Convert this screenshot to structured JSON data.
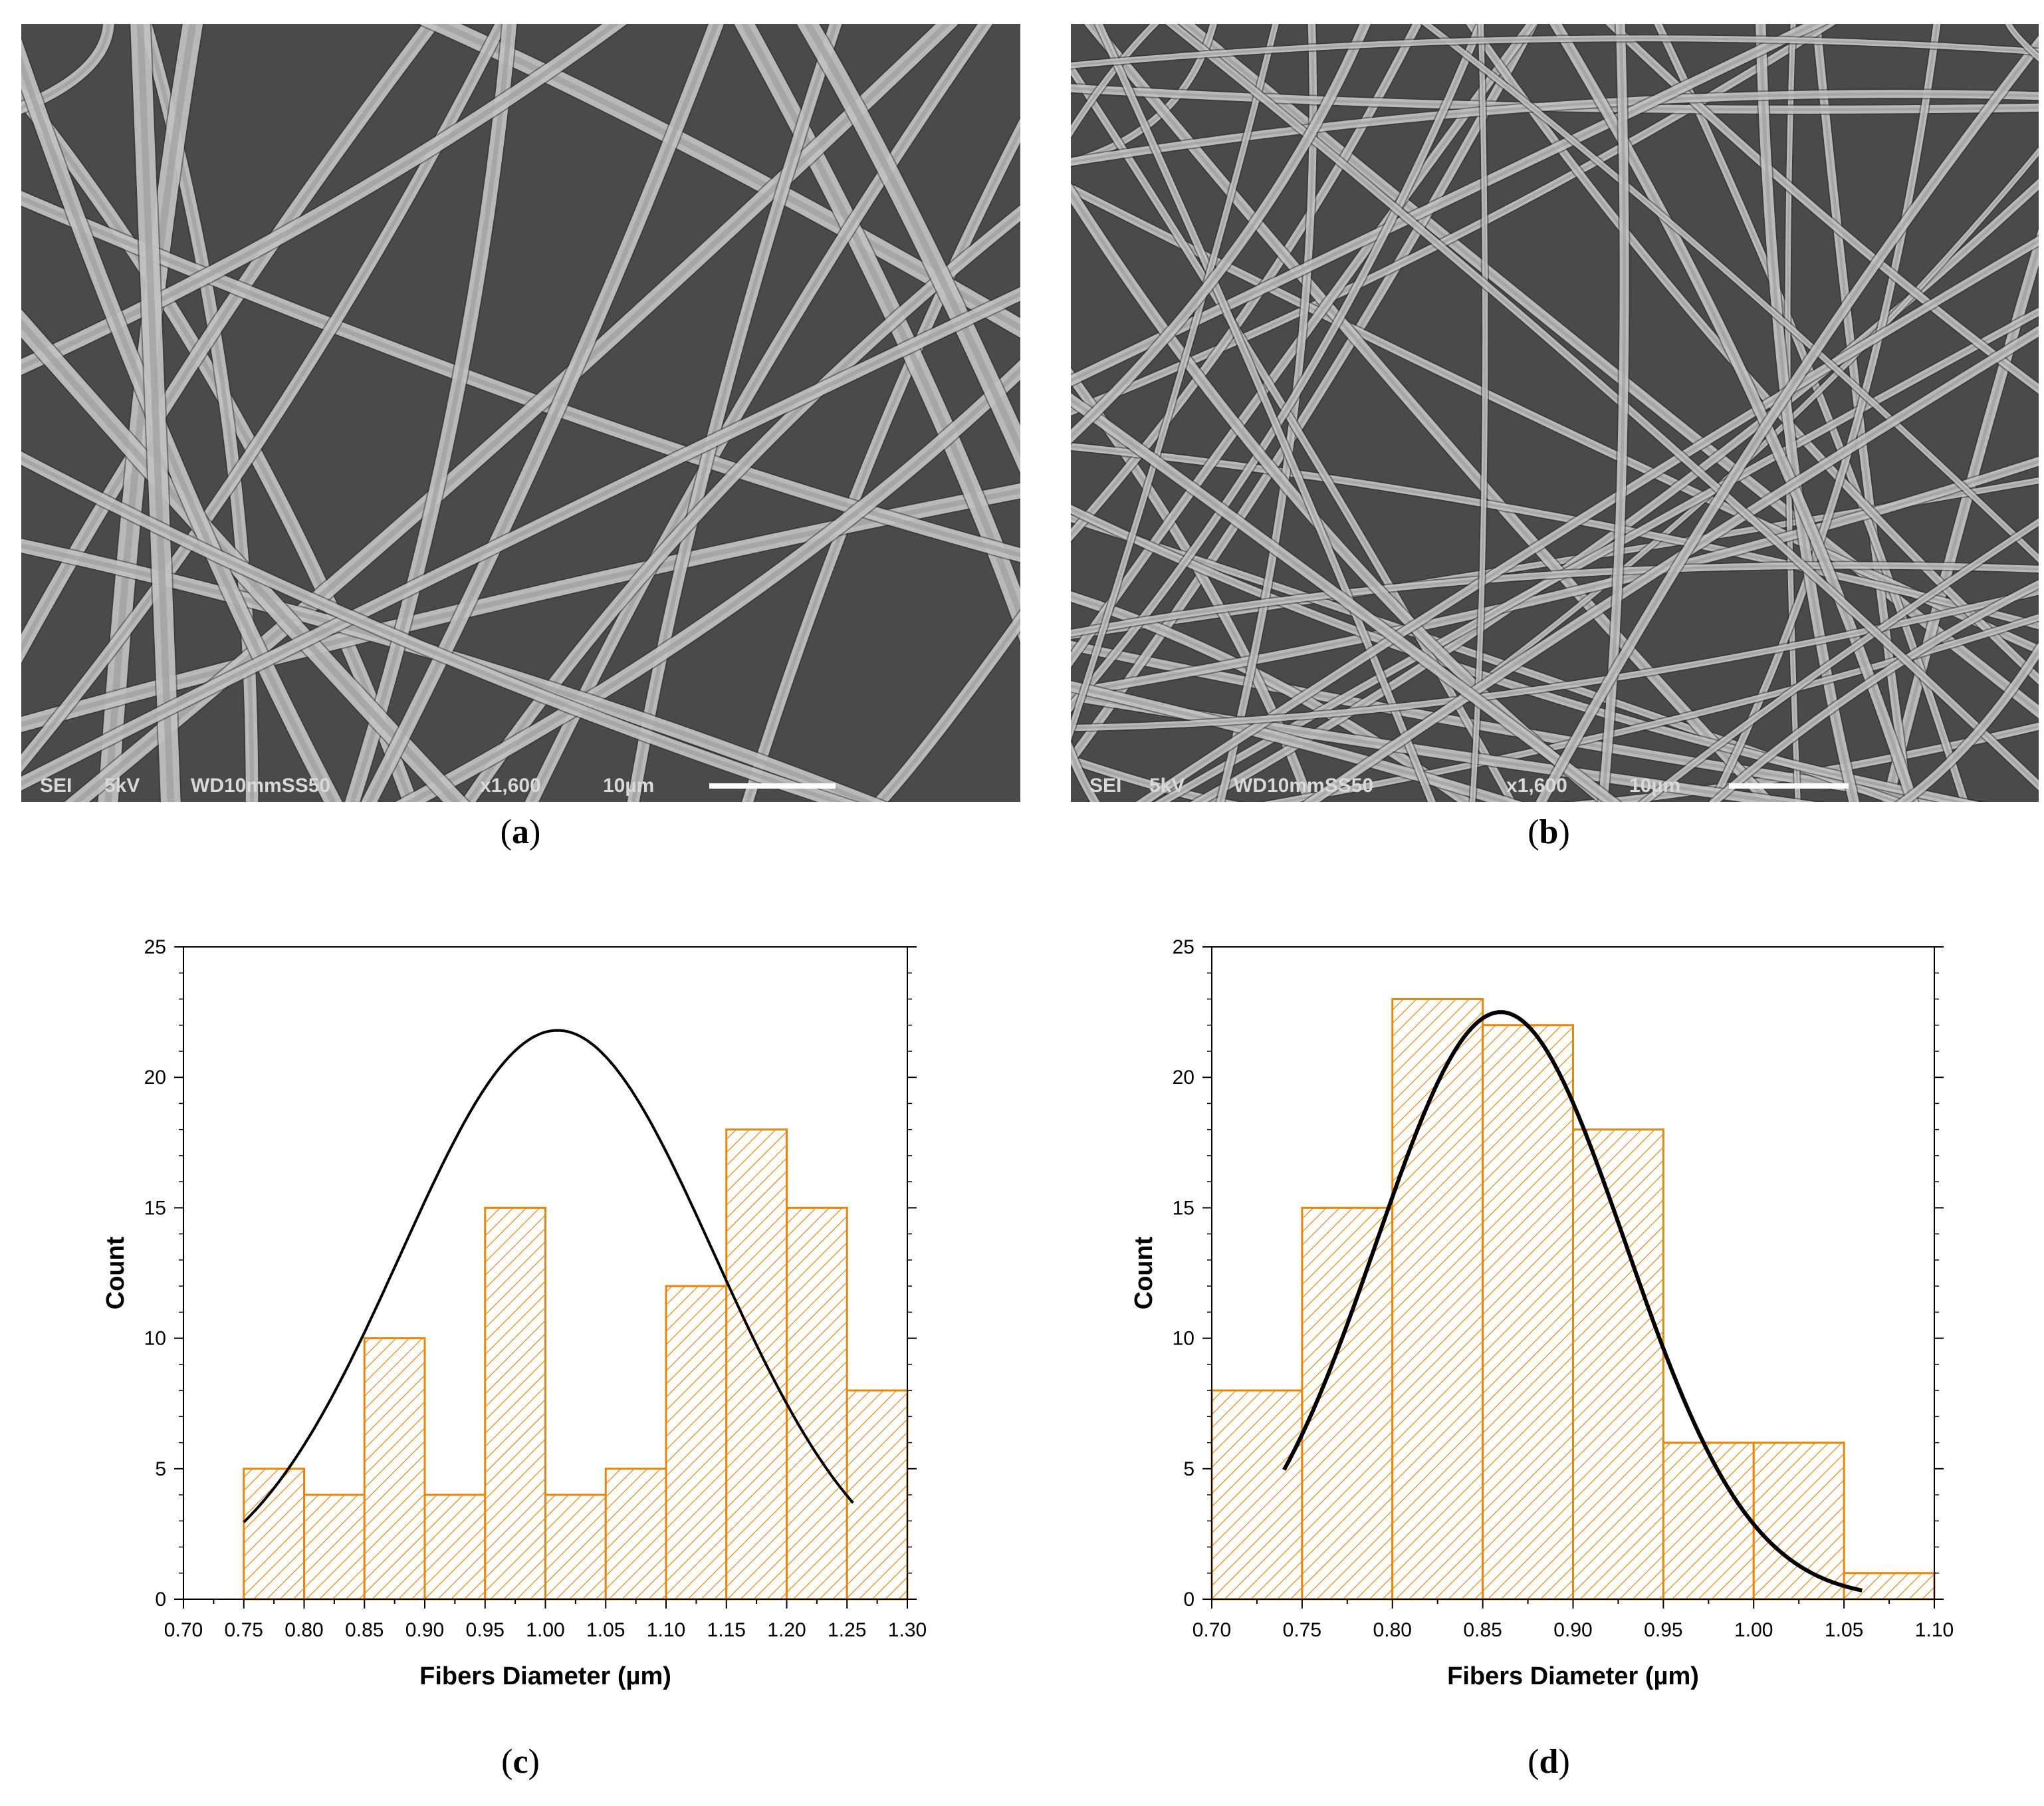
{
  "panels": {
    "a": {
      "label": "a",
      "sem": {
        "mode": "SEI",
        "voltage": "5kV",
        "working_distance": "WD10mmSS50",
        "magnification": "x1,600",
        "scale": "10µm"
      }
    },
    "b": {
      "label": "b",
      "sem": {
        "mode": "SEI",
        "voltage": "5kV",
        "working_distance": "WD10mmSS50",
        "magnification": "x1,600",
        "scale": "10µm"
      }
    },
    "c": {
      "label": "c"
    },
    "d": {
      "label": "d"
    }
  },
  "colors": {
    "bar": "#e8860c",
    "curve": "#000000",
    "sem_background": "#4a4a4a",
    "fiber": "#cfcfcf"
  },
  "chart_data": [
    {
      "panel": "c",
      "type": "bar",
      "xlabel": "Fibers Diameter (µm)",
      "ylabel": "Count",
      "xlim": [
        0.7,
        1.3
      ],
      "ylim": [
        0,
        25
      ],
      "xticks": [
        "0.70",
        "0.75",
        "0.80",
        "0.85",
        "0.90",
        "0.95",
        "1.00",
        "1.05",
        "1.10",
        "1.15",
        "1.20",
        "1.25",
        "1.30"
      ],
      "yticks": [
        "0",
        "5",
        "10",
        "15",
        "20",
        "25"
      ],
      "bin_width": 0.05,
      "bins": [
        {
          "start": 0.75,
          "count": 5
        },
        {
          "start": 0.8,
          "count": 4
        },
        {
          "start": 0.85,
          "count": 10
        },
        {
          "start": 0.9,
          "count": 4
        },
        {
          "start": 0.95,
          "count": 15
        },
        {
          "start": 1.0,
          "count": 4
        },
        {
          "start": 1.05,
          "count": 5
        },
        {
          "start": 1.1,
          "count": 12
        },
        {
          "start": 1.15,
          "count": 18
        },
        {
          "start": 1.2,
          "count": 15
        },
        {
          "start": 1.25,
          "count": 8
        }
      ],
      "fit": {
        "type": "gaussian",
        "mean": 1.01,
        "sigma": 0.13,
        "peak": 21.8,
        "x_range": [
          0.75,
          1.255
        ]
      },
      "grid": false,
      "legend": "none"
    },
    {
      "panel": "d",
      "type": "bar",
      "xlabel": "Fibers Diameter (µm)",
      "ylabel": "Count",
      "xlim": [
        0.7,
        1.1
      ],
      "ylim": [
        0,
        25
      ],
      "xticks": [
        "0.70",
        "0.75",
        "0.80",
        "0.85",
        "0.90",
        "0.95",
        "1.00",
        "1.05",
        "1.10"
      ],
      "yticks": [
        "0",
        "5",
        "10",
        "15",
        "20",
        "25"
      ],
      "bin_width": 0.05,
      "bins": [
        {
          "start": 0.7,
          "count": 8
        },
        {
          "start": 0.75,
          "count": 15
        },
        {
          "start": 0.8,
          "count": 23
        },
        {
          "start": 0.85,
          "count": 22
        },
        {
          "start": 0.9,
          "count": 18
        },
        {
          "start": 0.95,
          "count": 6
        },
        {
          "start": 1.0,
          "count": 6
        },
        {
          "start": 1.05,
          "count": 1
        }
      ],
      "fit": {
        "type": "gaussian",
        "mean": 0.86,
        "sigma": 0.069,
        "peak": 22.5,
        "x_range": [
          0.74,
          1.06
        ]
      },
      "grid": false,
      "legend": "none"
    }
  ]
}
